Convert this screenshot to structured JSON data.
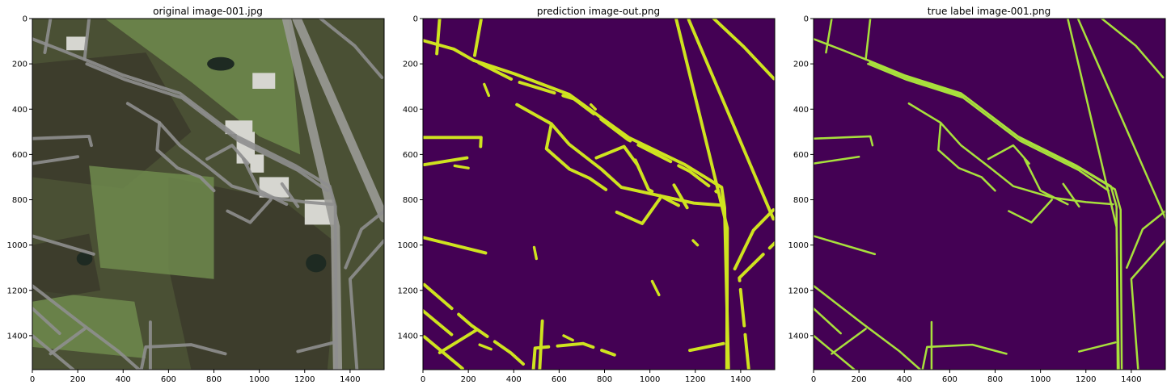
{
  "chart_data": [
    {
      "type": "heatmap",
      "title": "original image-001.jpg",
      "content": "aerial photograph",
      "xlim": [
        0,
        1550
      ],
      "ylim": [
        1550,
        0
      ],
      "xticks": [
        0,
        200,
        400,
        600,
        800,
        1000,
        1200,
        1400
      ],
      "yticks": [
        0,
        200,
        400,
        600,
        800,
        1000,
        1200,
        1400
      ],
      "colors": {
        "base": "#4a5034",
        "forest": "#3b3a2c",
        "grass": "#6f8a4e",
        "road": "#8e8e8e",
        "highway": "#9a9a96",
        "roof": "#d6d6d0",
        "water": "#1e2a22"
      }
    },
    {
      "type": "heatmap",
      "title": "prediction image-out.png",
      "content": "binary road mask",
      "xlim": [
        0,
        1550
      ],
      "ylim": [
        1550,
        0
      ],
      "xticks": [
        0,
        200,
        400,
        600,
        800,
        1000,
        1200,
        1400
      ],
      "yticks": [
        0,
        200,
        400,
        600,
        800,
        1000,
        1200,
        1400
      ],
      "colors": {
        "background": "#440154",
        "road": "#cfe31f"
      }
    },
    {
      "type": "heatmap",
      "title": "true label image-001.png",
      "content": "binary road mask",
      "xlim": [
        0,
        1550
      ],
      "ylim": [
        1550,
        0
      ],
      "xticks": [
        0,
        200,
        400,
        600,
        800,
        1000,
        1200,
        1400
      ],
      "yticks": [
        0,
        200,
        400,
        600,
        800,
        1000,
        1200,
        1400
      ],
      "colors": {
        "background": "#440154",
        "road": "#a8e03c"
      }
    }
  ],
  "roads": [
    {
      "name": "highway-west-lane",
      "pts": [
        [
          1120,
          0
        ],
        [
          1335,
          920
        ],
        [
          1345,
          1550
        ]
      ]
    },
    {
      "name": "highway-east-lane",
      "pts": [
        [
          1165,
          0
        ],
        [
          1550,
          880
        ]
      ]
    },
    {
      "name": "main-road-north",
      "pts": [
        [
          230,
          180
        ],
        [
          400,
          250
        ],
        [
          650,
          330
        ],
        [
          900,
          520
        ],
        [
          1160,
          650
        ],
        [
          1310,
          740
        ],
        [
          1335,
          830
        ],
        [
          1340,
          1550
        ]
      ]
    },
    {
      "name": "main-road-south",
      "pts": [
        [
          240,
          200
        ],
        [
          410,
          270
        ],
        [
          660,
          350
        ],
        [
          910,
          540
        ],
        [
          1170,
          670
        ],
        [
          1300,
          760
        ]
      ]
    },
    {
      "name": "loop-road",
      "pts": [
        [
          420,
          375
        ],
        [
          560,
          460
        ],
        [
          650,
          560
        ],
        [
          780,
          660
        ],
        [
          880,
          740
        ],
        [
          1050,
          790
        ],
        [
          1200,
          810
        ],
        [
          1320,
          820
        ]
      ]
    },
    {
      "name": "west-branch",
      "pts": [
        [
          560,
          460
        ],
        [
          550,
          580
        ],
        [
          640,
          660
        ],
        [
          740,
          700
        ],
        [
          800,
          760
        ]
      ]
    },
    {
      "name": "road-north-1",
      "pts": [
        [
          80,
          0
        ],
        [
          55,
          150
        ]
      ]
    },
    {
      "name": "road-north-2",
      "pts": [
        [
          250,
          0
        ],
        [
          230,
          180
        ]
      ]
    },
    {
      "name": "northwest-curve",
      "pts": [
        [
          0,
          90
        ],
        [
          130,
          140
        ],
        [
          230,
          180
        ]
      ]
    },
    {
      "name": "east-curve",
      "pts": [
        [
          1270,
          0
        ],
        [
          1420,
          120
        ],
        [
          1540,
          260
        ]
      ]
    },
    {
      "name": "spur-east",
      "pts": [
        [
          1380,
          1100
        ],
        [
          1450,
          930
        ],
        [
          1550,
          850
        ]
      ]
    },
    {
      "name": "spur-east-2",
      "pts": [
        [
          1430,
          1550
        ],
        [
          1400,
          1150
        ],
        [
          1550,
          980
        ]
      ]
    },
    {
      "name": "west-spur",
      "pts": [
        [
          0,
          530
        ],
        [
          250,
          520
        ],
        [
          260,
          560
        ]
      ]
    },
    {
      "name": "west-spur-2",
      "pts": [
        [
          0,
          640
        ],
        [
          200,
          610
        ]
      ]
    },
    {
      "name": "west-long",
      "pts": [
        [
          0,
          960
        ],
        [
          270,
          1040
        ]
      ]
    },
    {
      "name": "southwest-diag",
      "pts": [
        [
          0,
          1180
        ],
        [
          220,
          1350
        ],
        [
          380,
          1470
        ],
        [
          470,
          1550
        ]
      ]
    },
    {
      "name": "southwest-2",
      "pts": [
        [
          0,
          1280
        ],
        [
          120,
          1390
        ]
      ]
    },
    {
      "name": "southwest-3",
      "pts": [
        [
          0,
          1400
        ],
        [
          180,
          1550
        ]
      ]
    },
    {
      "name": "south-cross",
      "pts": [
        [
          80,
          1480
        ],
        [
          230,
          1370
        ]
      ]
    },
    {
      "name": "south-1",
      "pts": [
        [
          480,
          1550
        ],
        [
          500,
          1450
        ],
        [
          700,
          1440
        ],
        [
          850,
          1480
        ]
      ]
    },
    {
      "name": "south-2",
      "pts": [
        [
          520,
          1550
        ],
        [
          520,
          1340
        ]
      ]
    },
    {
      "name": "south-3",
      "pts": [
        [
          1170,
          1470
        ],
        [
          1330,
          1430
        ]
      ]
    },
    {
      "name": "inner-1",
      "pts": [
        [
          860,
          850
        ],
        [
          960,
          900
        ],
        [
          1050,
          800
        ]
      ]
    },
    {
      "name": "inner-2",
      "pts": [
        [
          930,
          620
        ],
        [
          1000,
          760
        ],
        [
          1120,
          820
        ]
      ]
    },
    {
      "name": "inner-3",
      "pts": [
        [
          770,
          620
        ],
        [
          880,
          560
        ],
        [
          950,
          640
        ]
      ]
    },
    {
      "name": "inner-4",
      "pts": [
        [
          1100,
          730
        ],
        [
          1170,
          830
        ]
      ]
    }
  ],
  "pred_fragments": [
    {
      "name": "frag-1",
      "pts": [
        [
          270,
          290
        ],
        [
          290,
          340
        ]
      ]
    },
    {
      "name": "frag-2",
      "pts": [
        [
          740,
          380
        ],
        [
          760,
          400
        ]
      ]
    },
    {
      "name": "frag-3",
      "pts": [
        [
          1010,
          1160
        ],
        [
          1040,
          1220
        ]
      ]
    },
    {
      "name": "frag-4",
      "pts": [
        [
          490,
          1010
        ],
        [
          500,
          1060
        ]
      ]
    },
    {
      "name": "frag-5",
      "pts": [
        [
          140,
          650
        ],
        [
          200,
          660
        ]
      ]
    },
    {
      "name": "frag-6",
      "pts": [
        [
          620,
          1400
        ],
        [
          660,
          1420
        ]
      ]
    },
    {
      "name": "frag-7",
      "pts": [
        [
          1190,
          980
        ],
        [
          1210,
          1000
        ]
      ]
    },
    {
      "name": "frag-8",
      "pts": [
        [
          250,
          1440
        ],
        [
          300,
          1460
        ]
      ]
    }
  ]
}
